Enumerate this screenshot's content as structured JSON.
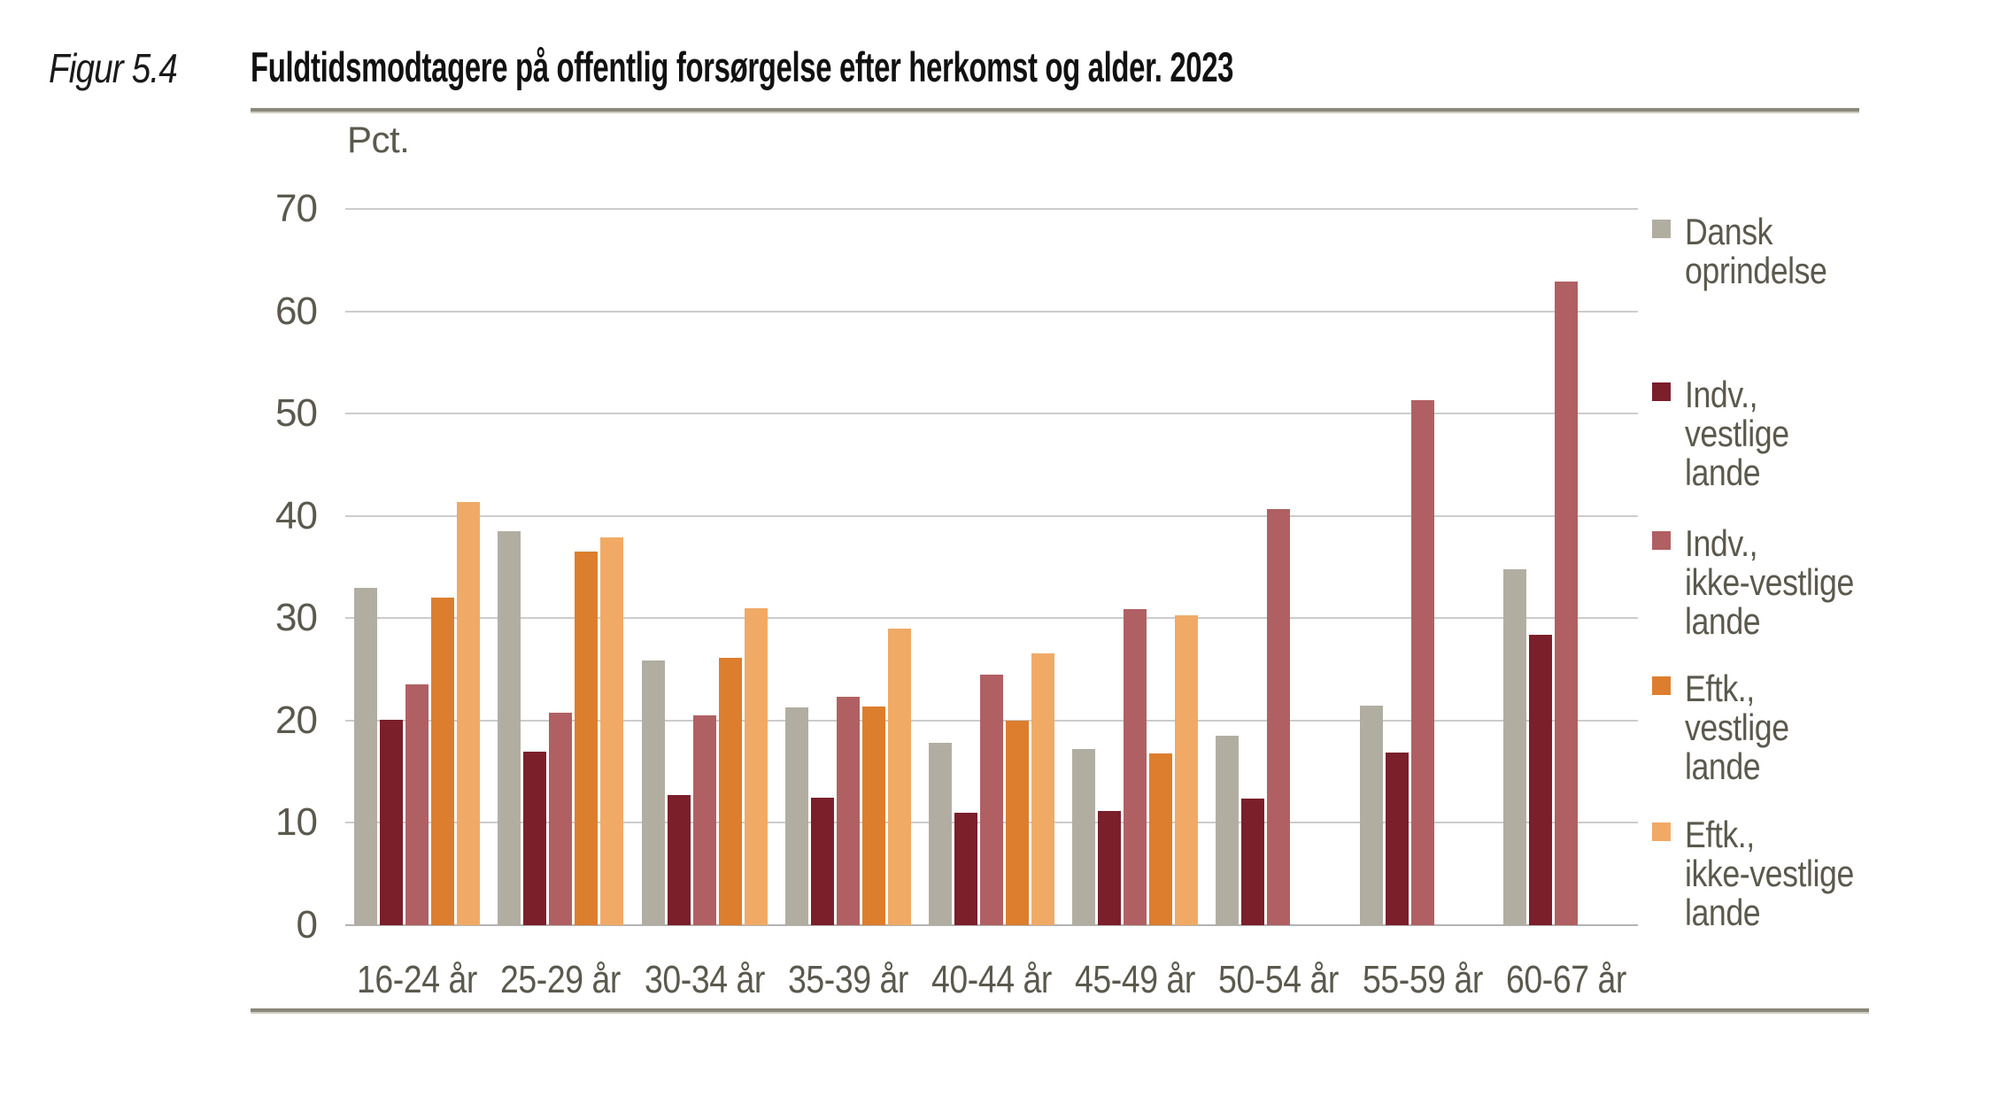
{
  "figure": {
    "label": "Figur 5.4",
    "title": "Fuldtidsmodtagere på offentlig forsørgelse efter herkomst og alder. 2023"
  },
  "chart_data": {
    "type": "bar",
    "title": "Fuldtidsmodtagere på offentlig forsørgelse efter herkomst og alder. 2023",
    "unit_label": "Pct.",
    "xlabel": "",
    "ylabel": "Pct.",
    "ylim": [
      0,
      70
    ],
    "yticks": [
      0,
      10,
      20,
      30,
      40,
      50,
      60,
      70
    ],
    "grid": true,
    "legend_position": "right",
    "categories": [
      "16-24 år",
      "25-29 år",
      "30-34 år",
      "35-39 år",
      "40-44 år",
      "45-49 år",
      "50-54 år",
      "55-59 år",
      "60-67 år"
    ],
    "series": [
      {
        "name": "Dansk oprindelse",
        "legend_lines": [
          "Dansk",
          "oprindelse"
        ],
        "color": "#b1aea1",
        "values": [
          33.0,
          38.5,
          25.9,
          21.3,
          17.8,
          17.2,
          18.5,
          21.5,
          34.8
        ]
      },
      {
        "name": "Indv., vestlige lande",
        "legend_lines": [
          "Indv.,",
          "vestlige",
          "lande"
        ],
        "color": "#7b1f2b",
        "values": [
          20.1,
          17.0,
          12.7,
          12.5,
          11.0,
          11.2,
          12.4,
          16.9,
          28.4
        ]
      },
      {
        "name": "Indv., ikke-vestlige lande",
        "legend_lines": [
          "Indv.,",
          "ikke-vestlige",
          "lande"
        ],
        "color": "#b06063",
        "values": [
          23.5,
          20.8,
          20.5,
          22.3,
          24.5,
          30.9,
          40.7,
          51.3,
          62.9
        ]
      },
      {
        "name": "Eftk., vestlige lande",
        "legend_lines": [
          "Eftk.,",
          "vestlige",
          "lande"
        ],
        "color": "#dc7e2e",
        "values": [
          32.0,
          36.5,
          26.1,
          21.4,
          20.0,
          16.8,
          null,
          null,
          null
        ]
      },
      {
        "name": "Eftk., ikke-vestlige lande",
        "legend_lines": [
          "Eftk.,",
          "ikke-vestlige",
          "lande"
        ],
        "color": "#f0aa66",
        "values": [
          41.4,
          37.9,
          31.0,
          29.0,
          26.6,
          30.3,
          null,
          null,
          null
        ]
      }
    ]
  }
}
